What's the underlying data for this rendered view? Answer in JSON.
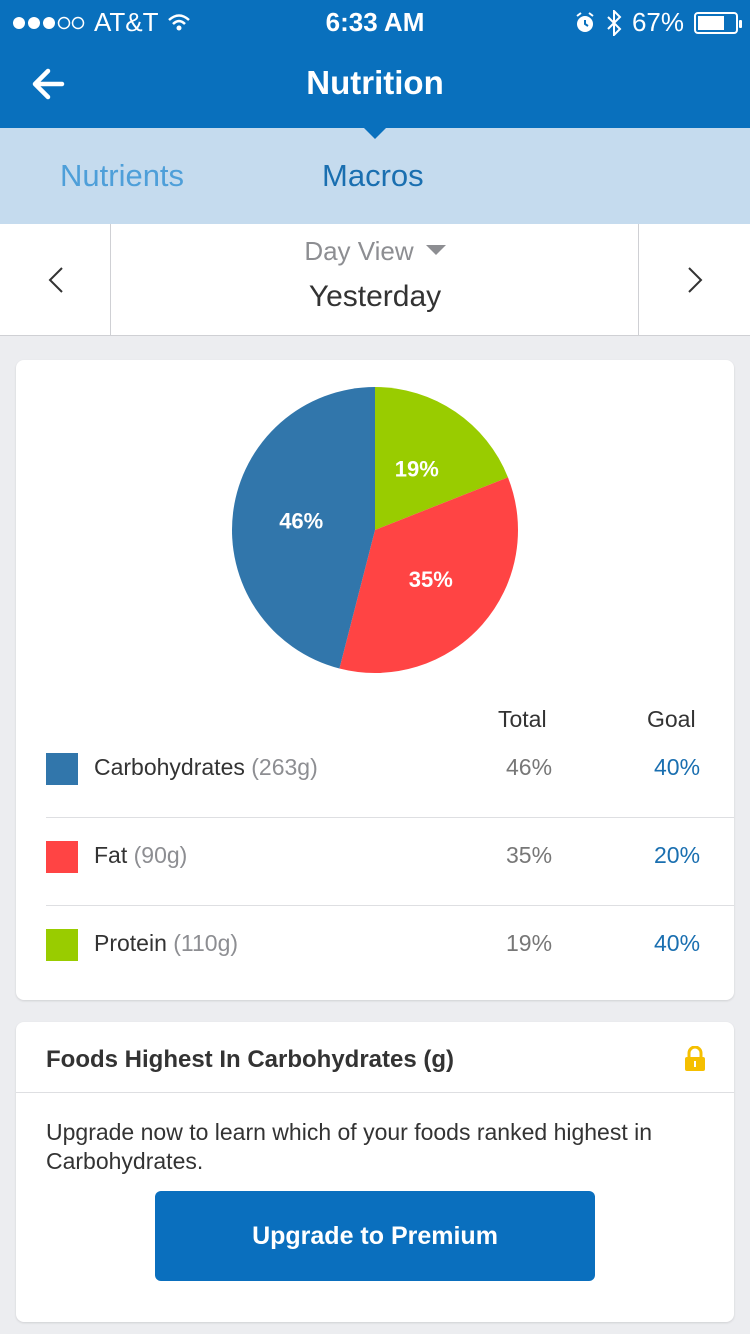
{
  "status_bar": {
    "carrier": "AT&T",
    "time": "6:33 AM",
    "battery": "67%"
  },
  "header": {
    "title": "Nutrition"
  },
  "tabs": [
    {
      "label": "Nutrients",
      "active": false
    },
    {
      "label": "Macros",
      "active": true
    }
  ],
  "date_selector": {
    "view": "Day View",
    "date": "Yesterday"
  },
  "chart_data": {
    "type": "pie",
    "slices": [
      {
        "name": "Protein",
        "value": 19,
        "label": "19%",
        "color": "#99cc00"
      },
      {
        "name": "Fat",
        "value": 35,
        "label": "35%",
        "color": "#ff4444"
      },
      {
        "name": "Carbohydrates",
        "value": 46,
        "label": "46%",
        "color": "#3176ab"
      }
    ]
  },
  "table": {
    "headers": {
      "total": "Total",
      "goal": "Goal"
    },
    "rows": [
      {
        "name": "Carbohydrates",
        "grams": "(263g)",
        "total": "46%",
        "goal": "40%",
        "color": "#3176ab"
      },
      {
        "name": "Fat",
        "grams": "(90g)",
        "total": "35%",
        "goal": "20%",
        "color": "#ff4444"
      },
      {
        "name": "Protein",
        "grams": "(110g)",
        "total": "19%",
        "goal": "40%",
        "color": "#99cc00"
      }
    ]
  },
  "foods": {
    "title": "Foods Highest In Carbohydrates (g)",
    "message": "Upgrade now to learn which of your foods ranked highest in Carbohydrates.",
    "button": "Upgrade to Premium",
    "lock_icon": "lock-icon"
  },
  "colors": {
    "brand": "#0970bd",
    "tab_bg": "#c5dbee",
    "link": "#1a6fb0"
  }
}
